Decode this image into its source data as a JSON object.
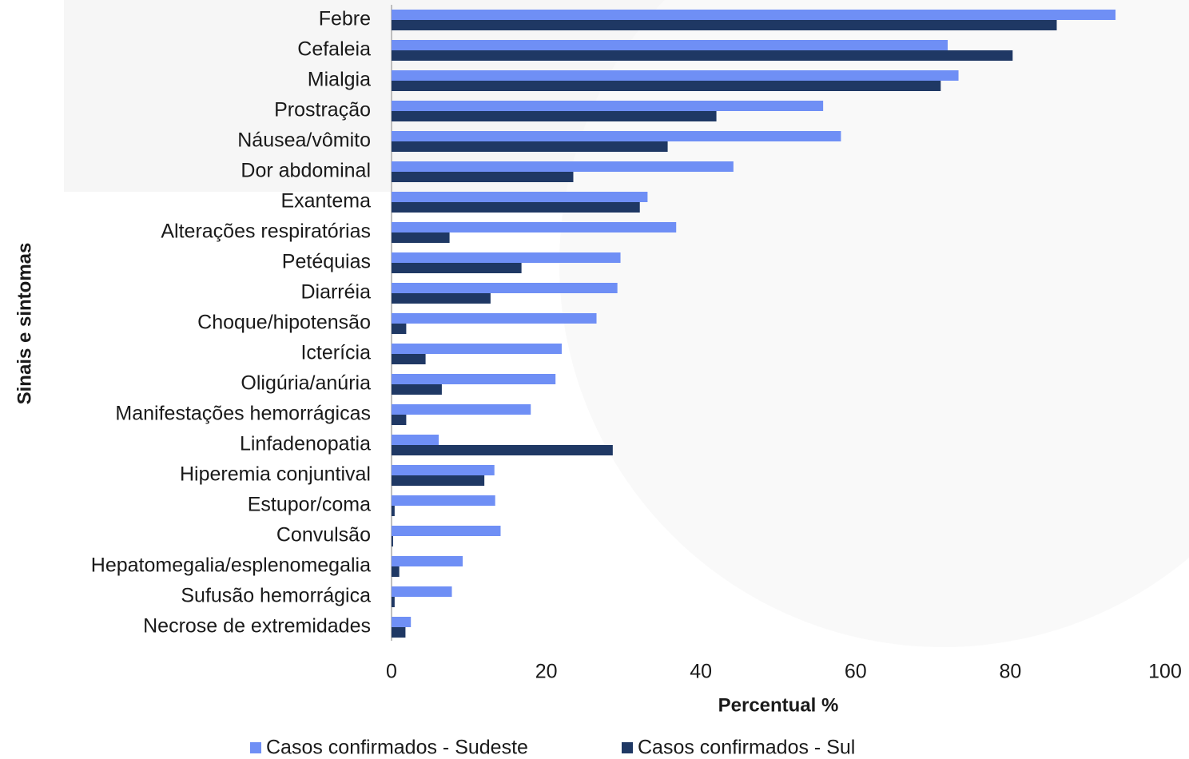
{
  "chart_data": {
    "type": "barh",
    "xlabel": "Percentual %",
    "ylabel": "Sinais e sintomas",
    "categories": [
      "Febre",
      "Cefaleia",
      "Mialgia",
      "Prostração",
      "Náusea/vômito",
      "Dor abdominal",
      "Exantema",
      "Alterações respiratórias",
      "Petéquias",
      "Diarréia",
      "Choque/hipotensão",
      "Icterícia",
      "Oligúria/anúria",
      "Manifestações hemorrágicas",
      "Linfadenopatia",
      "Hiperemia conjuntival",
      "Estupor/coma",
      "Convulsão",
      "Hepatomegalia/esplenomegalia",
      "Sufusão hemorrágica",
      "Necrose de extremidades"
    ],
    "series": [
      {
        "name": "Casos confirmados - Sudeste",
        "color": "#6f8ff5",
        "values": [
          93.6,
          71.9,
          73.3,
          55.8,
          58.1,
          44.2,
          33.1,
          36.8,
          29.6,
          29.2,
          26.5,
          22.0,
          21.2,
          18.0,
          6.1,
          13.3,
          13.4,
          14.1,
          9.2,
          7.8,
          2.5
        ]
      },
      {
        "name": "Casos confirmados - Sul",
        "color": "#1f3864",
        "values": [
          86.0,
          80.3,
          71.0,
          42.0,
          35.7,
          23.5,
          32.1,
          7.5,
          16.8,
          12.8,
          1.9,
          4.4,
          6.5,
          1.9,
          28.6,
          12.0,
          0.4,
          0.2,
          1.0,
          0.4,
          1.8
        ]
      }
    ],
    "xlim": [
      0,
      100
    ],
    "xticks": [
      0,
      20,
      40,
      60,
      80,
      100
    ],
    "legend": "bottom"
  }
}
